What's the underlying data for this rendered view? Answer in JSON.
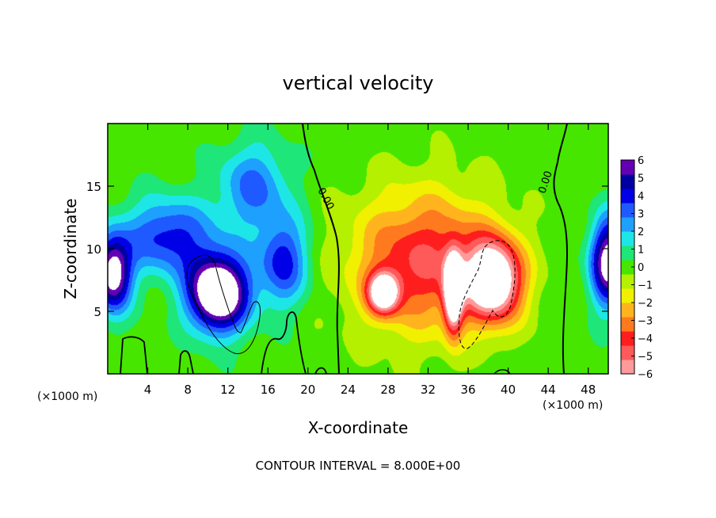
{
  "chart_data": {
    "type": "heatmap",
    "title": "vertical velocity",
    "xlabel": "X-coordinate",
    "ylabel": "Z-coordinate",
    "x_units_left": "(×1000 m)",
    "x_units_right": "(×1000 m)",
    "footer": "CONTOUR INTERVAL = 8.000E+00",
    "xlim": [
      0,
      50
    ],
    "ylim": [
      0,
      20
    ],
    "x_ticks": [
      4,
      8,
      12,
      16,
      20,
      24,
      28,
      32,
      36,
      40,
      44,
      48
    ],
    "y_ticks": [
      5,
      10,
      15
    ],
    "colorbar": {
      "range": [
        -6,
        6
      ],
      "ticks": [
        "6",
        "5",
        "4",
        "3",
        "2",
        "1",
        "0",
        "−1",
        "−2",
        "−3",
        "−4",
        "−5",
        "−6"
      ],
      "colors": [
        "#ff9a9a",
        "#ff5a5a",
        "#ff1e1e",
        "#ff7a1e",
        "#ffb41e",
        "#f0f000",
        "#b4f000",
        "#46e600",
        "#1ee678",
        "#1ee6e6",
        "#1ea0ff",
        "#1e5aff",
        "#0000e6",
        "#0000a0",
        "#6400b4"
      ],
      "over_color": "#ffffff",
      "under_color": "#ffffff"
    },
    "contour_labels": [
      "0.00",
      "0.00"
    ],
    "features": [
      {
        "kind": "updraft-core",
        "x": 11,
        "z": 6.5,
        "sx": 3.0,
        "sz": 3.0,
        "value": 9
      },
      {
        "kind": "updraft-band",
        "x": 6,
        "z": 11,
        "sx": 4.5,
        "sz": 3.0,
        "value": 4
      },
      {
        "kind": "updraft",
        "x": 14.5,
        "z": 15,
        "sx": 3.5,
        "sz": 3.5,
        "value": 3
      },
      {
        "kind": "updraft",
        "x": 17.5,
        "z": 9,
        "sx": 2.5,
        "sz": 3.5,
        "value": 4
      },
      {
        "kind": "updraft-edge",
        "x": 0.5,
        "z": 8,
        "sx": 1.8,
        "sz": 3.0,
        "value": 7
      },
      {
        "kind": "updraft-edge",
        "x": 50,
        "z": 9,
        "sx": 1.8,
        "sz": 3.5,
        "value": 7
      },
      {
        "kind": "downdraft",
        "x": 31.5,
        "z": 9,
        "sx": 7.0,
        "sz": 5.5,
        "value": -4.5
      },
      {
        "kind": "downdraft-core",
        "x": 38.5,
        "z": 7.5,
        "sx": 2.8,
        "sz": 3.2,
        "value": -8
      },
      {
        "kind": "downdraft-core",
        "x": 34.5,
        "z": 6.5,
        "sx": 0.9,
        "sz": 3.0,
        "value": -7.5
      },
      {
        "kind": "downdraft-core",
        "x": 27.5,
        "z": 6.5,
        "sx": 1.5,
        "sz": 1.6,
        "value": -7
      }
    ]
  }
}
